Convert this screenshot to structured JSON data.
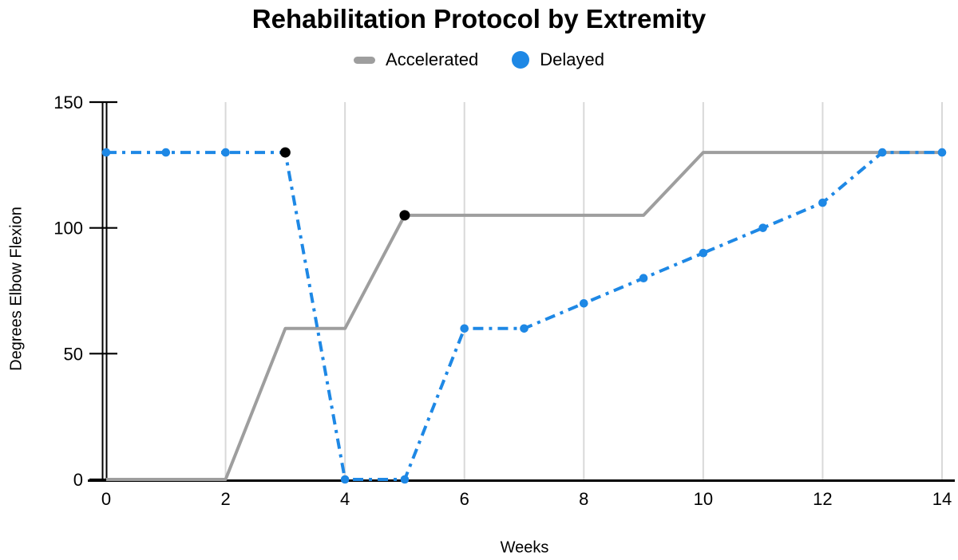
{
  "title": "Rehabilitation Protocol by Extremity",
  "legend": {
    "items": [
      {
        "label": "Accelerated",
        "swatch": "dash-icon",
        "color": "#9E9E9E"
      },
      {
        "label": "Delayed",
        "swatch": "circle-icon",
        "color": "#1E88E5"
      }
    ]
  },
  "colors": {
    "accelerated": "#9E9E9E",
    "delayed": "#1E88E5",
    "annotation": "#000000",
    "gridline": "#D9D9D9",
    "axis": "#000000",
    "text": "#000000",
    "background": "#FFFFFF"
  },
  "chart_data": {
    "type": "line",
    "title": "Rehabilitation Protocol by Extremity",
    "xlabel": "Weeks",
    "ylabel": "Degrees Elbow Flexion",
    "x": [
      0,
      1,
      2,
      3,
      4,
      5,
      6,
      7,
      8,
      9,
      10,
      11,
      12,
      13,
      14
    ],
    "series": [
      {
        "name": "Accelerated",
        "color": "#9E9E9E",
        "line_style": "solid",
        "markers": "none",
        "values": [
          0,
          0,
          0,
          60,
          60,
          105,
          105,
          105,
          105,
          105,
          130,
          130,
          130,
          130,
          130
        ]
      },
      {
        "name": "Delayed",
        "color": "#1E88E5",
        "line_style": "dash-dot",
        "markers": "circle",
        "values": [
          130,
          130,
          130,
          130,
          0,
          0,
          60,
          60,
          70,
          80,
          90,
          100,
          110,
          130,
          130
        ]
      }
    ],
    "annotated_points": [
      {
        "series": "Delayed",
        "x": 3,
        "y": 130
      },
      {
        "series": "Accelerated",
        "x": 5,
        "y": 105
      }
    ],
    "x_ticks": [
      0,
      2,
      4,
      6,
      8,
      10,
      12,
      14
    ],
    "y_ticks": [
      0,
      50,
      100,
      150
    ],
    "xlim": [
      0,
      14
    ],
    "ylim": [
      0,
      150
    ],
    "grid": "vertical",
    "legend_position": "top"
  }
}
